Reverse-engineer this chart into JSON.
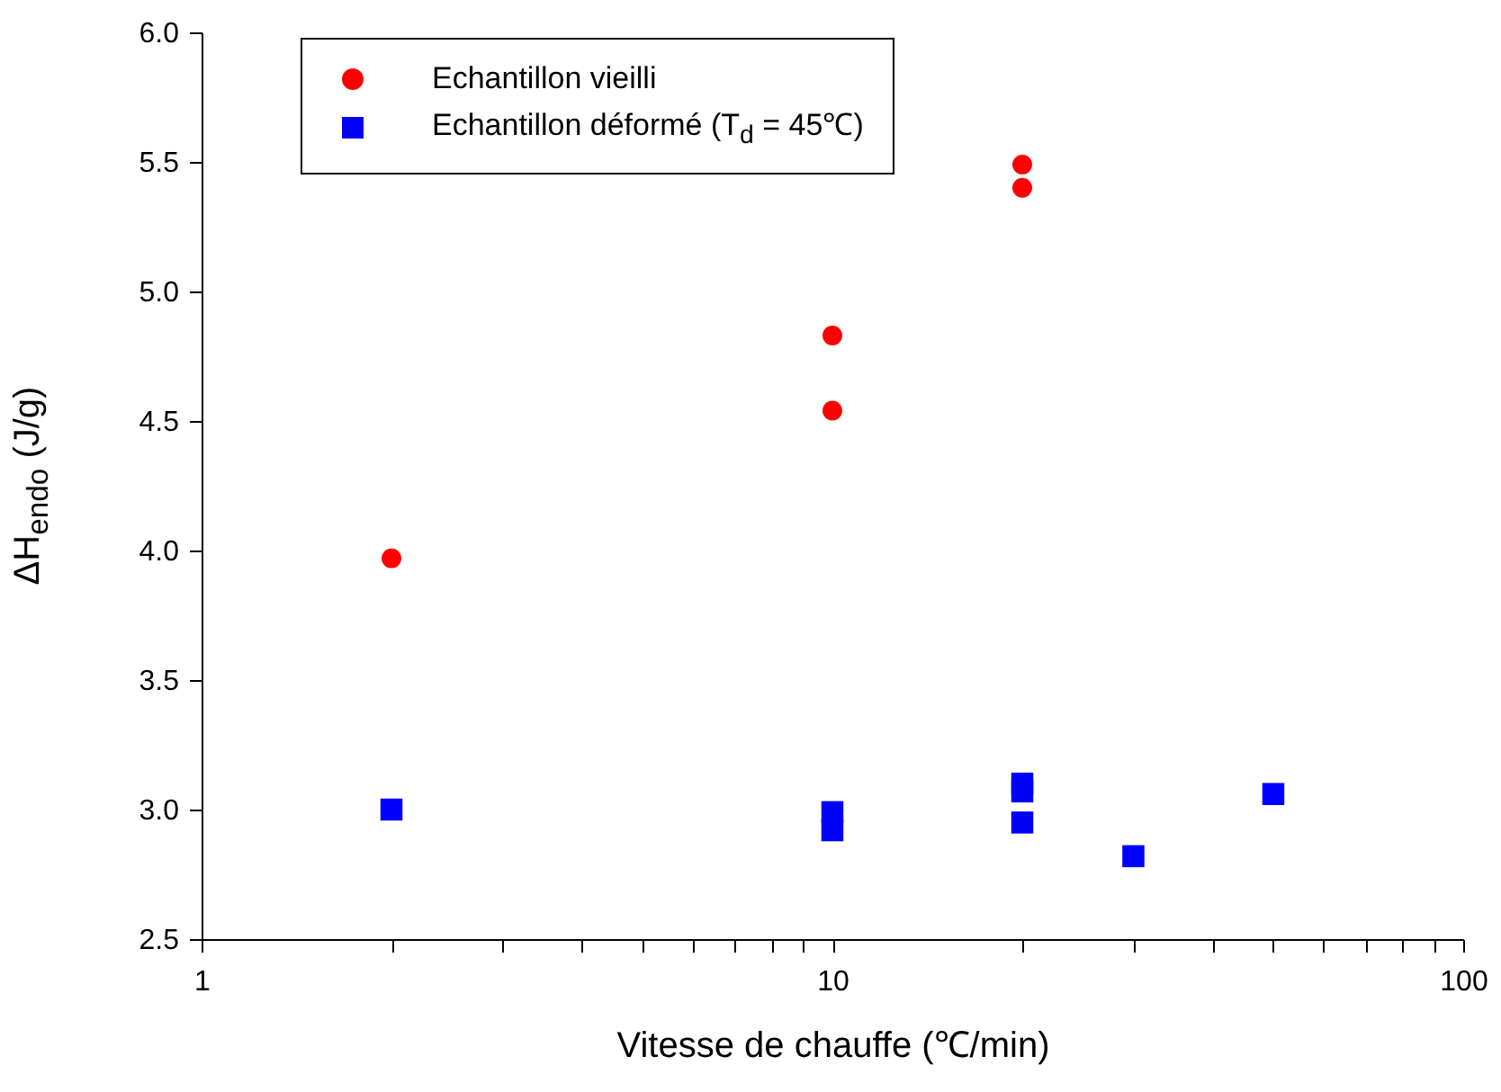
{
  "chart_data": {
    "type": "scatter",
    "xlabel": "Vitesse de chauffe (℃/min)",
    "ylabel": "ΔH$_{endo}$ (J/g)",
    "log": "x",
    "grid": false,
    "legend": "top left",
    "xlim": [
      1,
      100
    ],
    "xticks": [
      1,
      {
        "value": 2,
        "label": null
      },
      {
        "value": 3,
        "label": null
      },
      {
        "value": 4,
        "label": null
      },
      {
        "value": 5,
        "label": null
      },
      {
        "value": 6,
        "label": null
      },
      {
        "value": 7,
        "label": null
      },
      {
        "value": 8,
        "label": null
      },
      {
        "value": 9,
        "label": null
      },
      10,
      {
        "value": 20,
        "label": null
      },
      {
        "value": 30,
        "label": null
      },
      {
        "value": 40,
        "label": null
      },
      {
        "value": 50,
        "label": null
      },
      {
        "value": 60,
        "label": null
      },
      {
        "value": 70,
        "label": null
      },
      {
        "value": 80,
        "label": null
      },
      {
        "value": 90,
        "label": null
      },
      100
    ],
    "ylim": [
      2.5,
      6.0
    ],
    "yticks": [
      2.5,
      {
        "value": 3,
        "label": "3.0"
      },
      3.5,
      {
        "value": 4,
        "label": "4.0"
      },
      4.5,
      {
        "value": 5,
        "label": "5.0"
      },
      5.5,
      {
        "value": 6,
        "label": "6.0"
      }
    ],
    "series": [
      {
        "name": "Echantillon vieilli",
        "color": "#ff0000",
        "marker": "circle",
        "x": [
          2,
          10,
          10,
          20,
          20
        ],
        "values": [
          3.97,
          4.83,
          4.54,
          5.49,
          5.4
        ]
      },
      {
        "name": "Echantillon déformé (T$_{d}$ = 45℃)",
        "color": "#0000ff",
        "marker": "square",
        "x": [
          2,
          10,
          10,
          20,
          20,
          20,
          30,
          50
        ],
        "values": [
          3.0,
          2.99,
          2.92,
          3.1,
          3.07,
          2.95,
          2.82,
          3.06
        ]
      }
    ]
  }
}
